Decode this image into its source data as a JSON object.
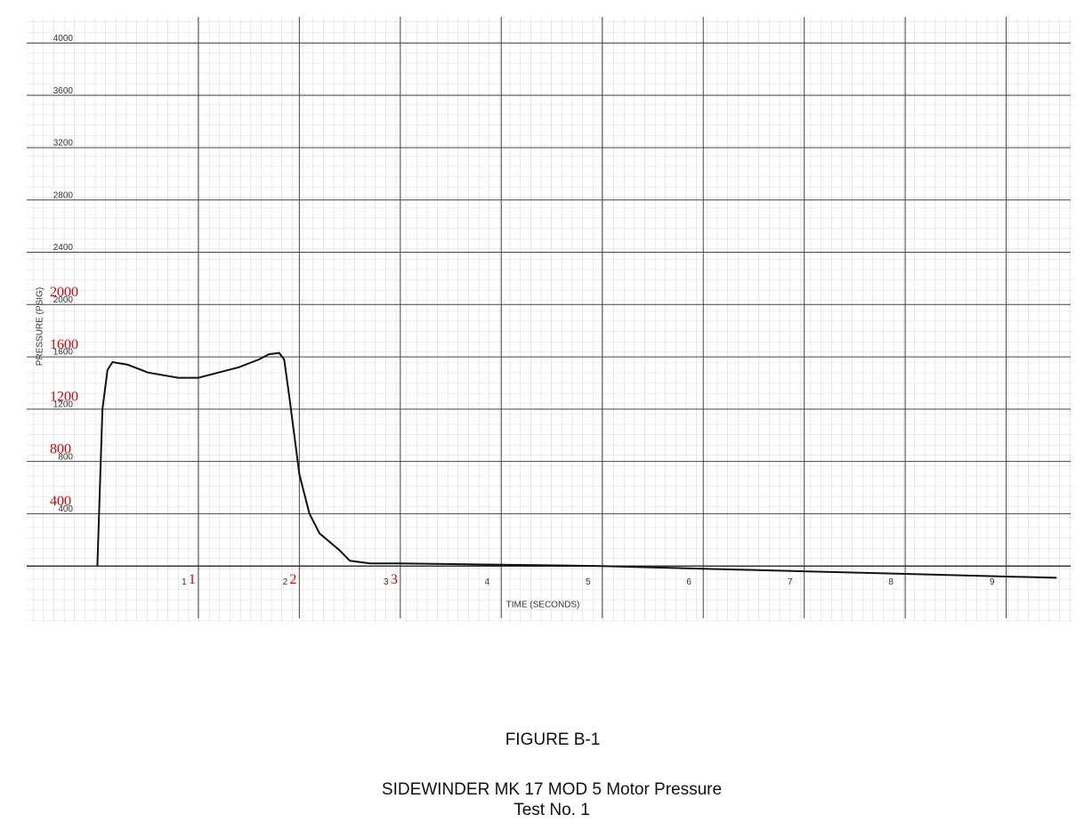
{
  "chart_data": {
    "type": "line",
    "title": "FIGURE B-1",
    "subtitle_lines": [
      "SIDEWINDER MK 17 MOD 5 Motor Pressure",
      "Test No. 1"
    ],
    "x_label": "TIME (SECONDS)",
    "y_label": "PRESSURE (PSIG)",
    "x": [
      0,
      0.05,
      0.1,
      0.15,
      0.3,
      0.5,
      0.8,
      1.0,
      1.2,
      1.4,
      1.6,
      1.7,
      1.8,
      1.85,
      1.9,
      1.95,
      2.0,
      2.1,
      2.2,
      2.4,
      2.5,
      2.7,
      3,
      4,
      5,
      6,
      7,
      8,
      9,
      9.5
    ],
    "values": [
      0,
      1200,
      1500,
      1560,
      1540,
      1480,
      1440,
      1440,
      1480,
      1520,
      1580,
      1620,
      1630,
      1580,
      1300,
      1000,
      700,
      400,
      250,
      120,
      40,
      20,
      20,
      10,
      0,
      -20,
      -40,
      -60,
      -80,
      -90
    ],
    "color": "#111111",
    "xlim": [
      -0.7,
      9.55
    ],
    "ylim": [
      -400,
      4200
    ],
    "xticks": [
      1,
      2,
      3,
      4,
      5,
      6,
      7,
      8,
      9
    ],
    "yticks": [
      400,
      800,
      1200,
      1600,
      2000,
      2400,
      2800,
      3200,
      3600,
      4000
    ],
    "grid": true,
    "overlay_xticks": [
      1,
      2,
      3
    ],
    "overlay_yticks": [
      400,
      800,
      1200,
      1600,
      2000
    ],
    "overlay_color": "#e00000"
  }
}
